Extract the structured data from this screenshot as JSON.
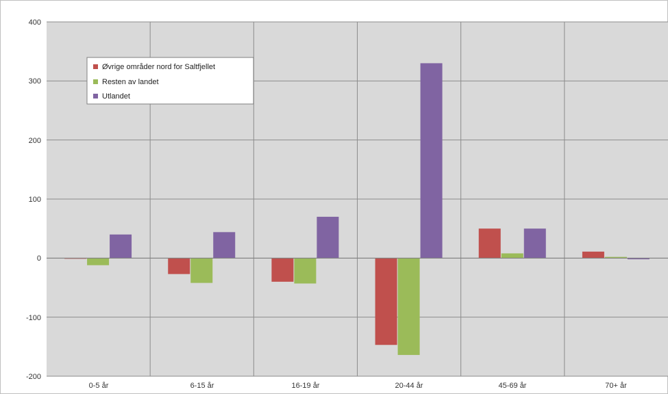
{
  "chart_data": {
    "type": "bar",
    "categories": [
      "0-5 år",
      "6-15 år",
      "16-19 år",
      "20-44 år",
      "45-69 år",
      "70+ år"
    ],
    "series": [
      {
        "name": "Øvrige områder nord for Saltfjellet",
        "color": "#c0504d",
        "values": [
          0,
          -27,
          -40,
          -147,
          50,
          11
        ]
      },
      {
        "name": "Resten av landet",
        "color": "#9bbb59",
        "values": [
          -12,
          -42,
          -43,
          -164,
          8,
          2
        ]
      },
      {
        "name": "Utlandet",
        "color": "#8064a2",
        "values": [
          40,
          44,
          70,
          330,
          50,
          -2
        ]
      }
    ],
    "y_ticks": [
      "400",
      "300",
      "200",
      "100",
      "0",
      "-100",
      "-200"
    ],
    "ylim": [
      -200,
      400
    ],
    "grid": true,
    "legend_position": "top-left",
    "plot_background": "#d9d9d9"
  }
}
